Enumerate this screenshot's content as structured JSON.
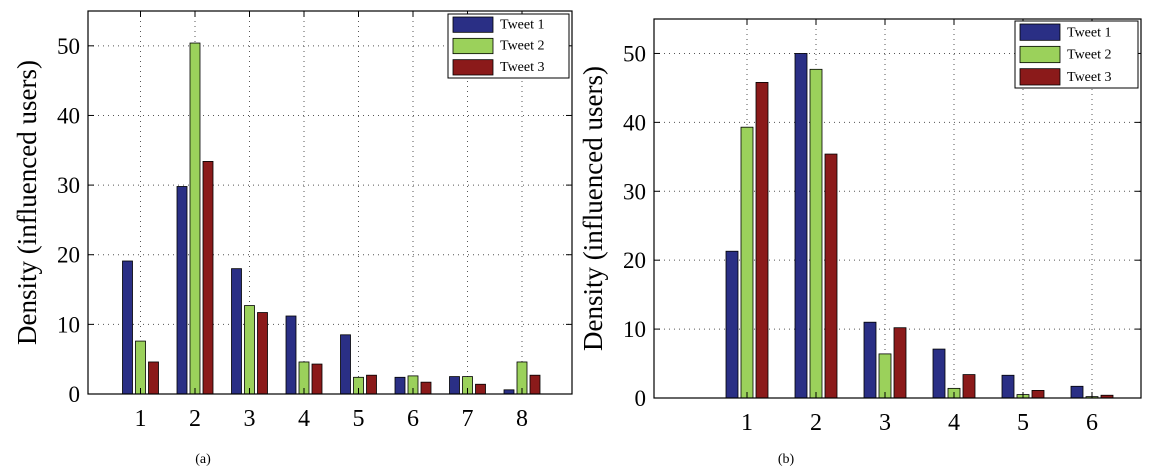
{
  "colors": {
    "series": [
      "#2a2f85",
      "#9bd15b",
      "#8b1a1a"
    ],
    "axis": "#000000",
    "grid": "#555555"
  },
  "chart_data": [
    {
      "type": "bar",
      "panel_label": "(a)",
      "ylabel": "Density (influenced users)",
      "xlabel": "",
      "categories": [
        "1",
        "2",
        "3",
        "4",
        "5",
        "6",
        "7",
        "8"
      ],
      "ylim": [
        0,
        55
      ],
      "yticks": [
        "0",
        "10",
        "20",
        "30",
        "40",
        "50"
      ],
      "grid": true,
      "legend_position": "top-right",
      "series": [
        {
          "name": "Tweet 1",
          "values": [
            19.1,
            29.8,
            18.0,
            11.2,
            8.5,
            2.4,
            2.5,
            0.6
          ]
        },
        {
          "name": "Tweet 2",
          "values": [
            7.6,
            50.4,
            12.7,
            4.6,
            2.4,
            2.6,
            2.5,
            4.6
          ]
        },
        {
          "name": "Tweet 3",
          "values": [
            4.6,
            33.4,
            11.7,
            4.3,
            2.7,
            1.7,
            1.4,
            2.7
          ]
        }
      ]
    },
    {
      "type": "bar",
      "panel_label": "(b)",
      "ylabel": "Density (influenced users)",
      "xlabel": "",
      "categories": [
        "1",
        "2",
        "3",
        "4",
        "5",
        "6"
      ],
      "ylim": [
        0,
        55
      ],
      "yticks": [
        "0",
        "10",
        "20",
        "30",
        "40",
        "50"
      ],
      "grid": true,
      "legend_position": "top-right",
      "series": [
        {
          "name": "Tweet 1",
          "values": [
            21.3,
            50.0,
            11.0,
            7.1,
            3.3,
            1.7
          ]
        },
        {
          "name": "Tweet 2",
          "values": [
            39.3,
            47.7,
            6.4,
            1.4,
            0.5,
            0.2
          ]
        },
        {
          "name": "Tweet 3",
          "values": [
            45.8,
            35.4,
            10.2,
            3.4,
            1.1,
            0.4
          ]
        }
      ]
    }
  ]
}
